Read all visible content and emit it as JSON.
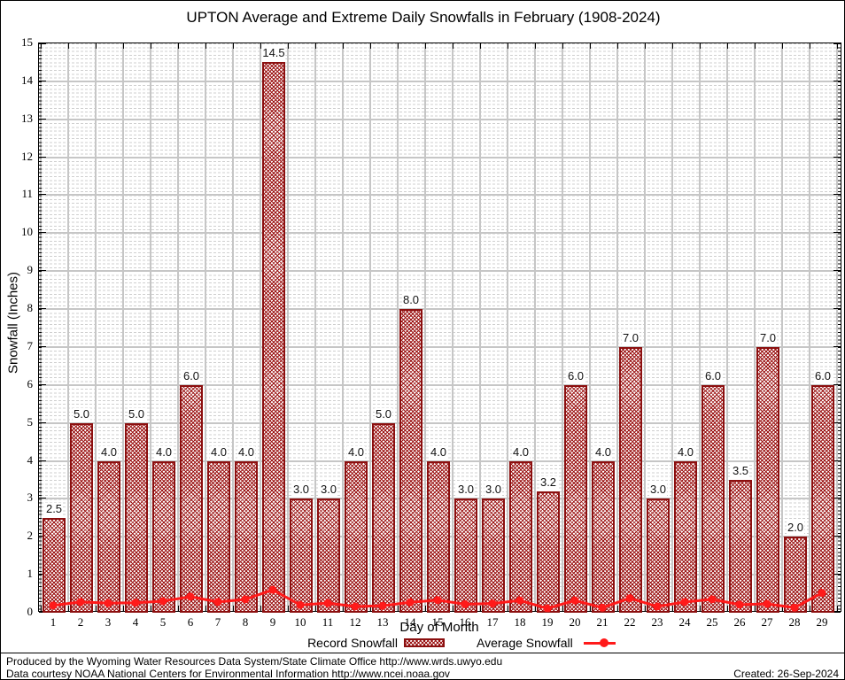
{
  "title": "UPTON Average and Extreme Daily Snowfalls in February (1908-2024)",
  "axes": {
    "ylabel": "Snowfall (Inches)",
    "xlabel": "Day of Month",
    "y_ticks": [
      0,
      1,
      2,
      3,
      4,
      5,
      6,
      7,
      8,
      9,
      10,
      11,
      12,
      13,
      14,
      15
    ]
  },
  "legend": {
    "record_label": "Record Snowfall",
    "average_label": "Average Snowfall"
  },
  "footer": {
    "line1": "Produced by the Wyoming Water Resources Data System/State Climate Office http://www.wrds.uwyo.edu",
    "line2": "Data courtesy NOAA National Centers for Environmental Information http://www.ncei.noaa.gov",
    "created": "Created: 26-Sep-2024"
  },
  "colors": {
    "bar_border": "#8b0f0f",
    "bar_hatch": "#9b1313",
    "average_line": "#ff1a1a",
    "major_grid": "#c6c6c6",
    "minor_grid": "#cfcfcf"
  },
  "chart_data": {
    "type": "bar",
    "title": "UPTON Average and Extreme Daily Snowfalls in February (1908-2024)",
    "xlabel": "Day of Month",
    "ylabel": "Snowfall (Inches)",
    "ylim": [
      0,
      15
    ],
    "grid": true,
    "legend_position": "bottom",
    "categories": [
      1,
      2,
      3,
      4,
      5,
      6,
      7,
      8,
      9,
      10,
      11,
      12,
      13,
      14,
      15,
      16,
      17,
      18,
      19,
      20,
      21,
      22,
      23,
      24,
      25,
      26,
      27,
      28,
      29
    ],
    "series": [
      {
        "name": "Record Snowfall",
        "type": "bar",
        "values": [
          2.5,
          5.0,
          4.0,
          5.0,
          4.0,
          6.0,
          4.0,
          4.0,
          14.5,
          3.0,
          3.0,
          4.0,
          5.0,
          8.0,
          4.0,
          3.0,
          3.0,
          4.0,
          3.2,
          6.0,
          4.0,
          7.0,
          3.0,
          4.0,
          6.0,
          3.5,
          7.0,
          2.0,
          6.0
        ],
        "labels": [
          "2.5",
          "5.0",
          "4.0",
          "5.0",
          "4.0",
          "6.0",
          "4.0",
          "4.0",
          "14.5",
          "3.0",
          "3.0",
          "4.0",
          "5.0",
          "8.0",
          "4.0",
          "3.0",
          "3.0",
          "4.0",
          "3.2",
          "6.0",
          "4.0",
          "7.0",
          "3.0",
          "4.0",
          "6.0",
          "3.5",
          "7.0",
          "2.0",
          "6.0"
        ]
      },
      {
        "name": "Average Snowfall",
        "type": "line",
        "values": [
          0.17,
          0.26,
          0.23,
          0.24,
          0.28,
          0.4,
          0.26,
          0.33,
          0.58,
          0.18,
          0.23,
          0.14,
          0.16,
          0.25,
          0.31,
          0.2,
          0.22,
          0.3,
          0.09,
          0.3,
          0.11,
          0.36,
          0.14,
          0.26,
          0.33,
          0.19,
          0.21,
          0.11,
          0.5
        ]
      }
    ]
  }
}
